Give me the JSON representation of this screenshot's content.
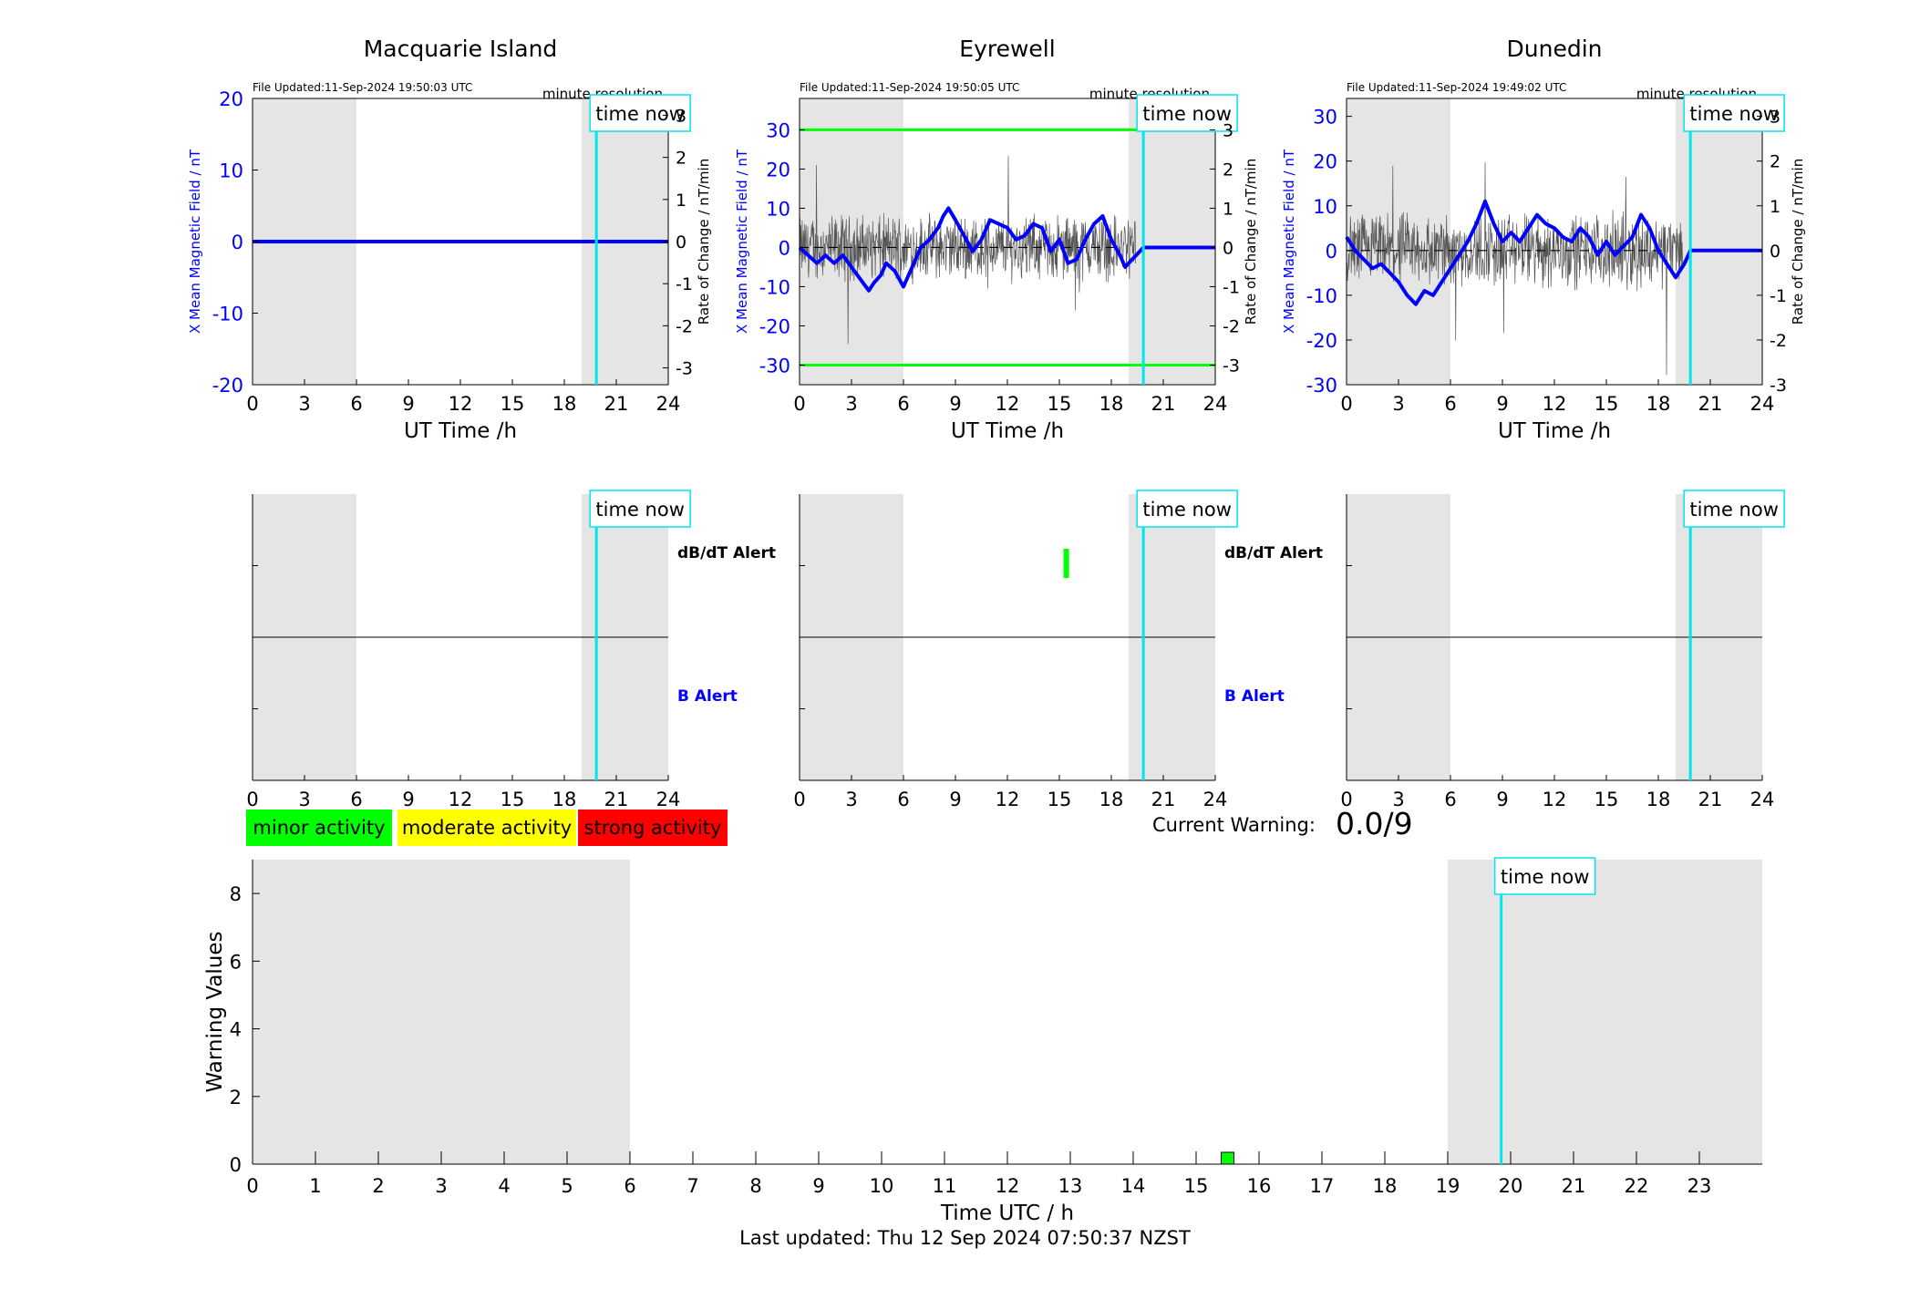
{
  "legend": {
    "minor": {
      "label": "minor activity",
      "color": "#00ff00"
    },
    "moderate": {
      "label": "moderate activity",
      "color": "#ffff00"
    },
    "strong": {
      "label": "strong activity",
      "color": "#ff0000"
    }
  },
  "current_warning": {
    "label": "Current Warning:",
    "value": "0.0/9"
  },
  "footer": {
    "last_updated": "Last updated: Thu 12 Sep 2024 07:50:37 NZST"
  },
  "colors": {
    "field": "#0000ff",
    "rate": "#555555",
    "shade": "#e5e5e5",
    "time_now": "#00e5ee",
    "threshold": "#00ff00"
  },
  "common": {
    "time_now_label": "time now",
    "minute_resolution": "minute resolution",
    "x_label": "UT Time /h",
    "y_label_field": "X Mean Magnetic Field / nT",
    "y_label_rate": "Rate of Change / nT/min",
    "dbdt_alert": "dB/dT Alert",
    "b_alert": "B Alert",
    "x_ticks": [
      0,
      3,
      6,
      9,
      12,
      15,
      18,
      21,
      24
    ]
  },
  "chart_data": [
    {
      "type": "line",
      "station": "Macquarie Island",
      "file_updated": "File Updated:11-Sep-2024 19:50:03 UTC",
      "xlim": [
        0,
        24
      ],
      "ylim": [
        -20,
        20
      ],
      "y_ticks": [
        "20",
        "10",
        "0",
        "-10",
        "-20"
      ],
      "y2lim": [
        -3.4,
        3.4
      ],
      "y2_ticks": [
        "3",
        "2",
        "1",
        "0",
        "-1",
        "-2",
        "-3"
      ],
      "shaded_x": [
        [
          0,
          6
        ],
        [
          19,
          24
        ]
      ],
      "time_now": 19.85,
      "series": [
        {
          "name": "X Mean Magnetic Field / nT",
          "x": [
            0,
            24
          ],
          "y": [
            0,
            0
          ]
        }
      ],
      "alerts": {
        "dbdt": [],
        "b": []
      }
    },
    {
      "type": "line",
      "station": "Eyrewell",
      "file_updated": "File Updated:11-Sep-2024 19:50:05 UTC",
      "xlim": [
        0,
        24
      ],
      "ylim": [
        -35,
        38
      ],
      "y_ticks": [
        "30",
        "20",
        "10",
        "0",
        "-10",
        "-20",
        "-30"
      ],
      "y2lim": [
        -3.5,
        3.8
      ],
      "y2_ticks": [
        "3",
        "2",
        "1",
        "0",
        "-1",
        "-2",
        "-3"
      ],
      "shaded_x": [
        [
          0,
          6
        ],
        [
          19,
          24
        ]
      ],
      "time_now": 19.85,
      "thresholds": [
        30,
        -30
      ],
      "series": [
        {
          "name": "X Mean Magnetic Field / nT",
          "x": [
            0,
            0.5,
            1,
            1.5,
            2,
            2.5,
            3,
            3.5,
            4,
            4.3,
            4.7,
            5,
            5.5,
            6,
            6.5,
            7,
            7.5,
            8,
            8.3,
            8.6,
            9,
            9.5,
            10,
            10.5,
            11,
            11.5,
            12,
            12.5,
            13,
            13.5,
            14,
            14.5,
            15,
            15.5,
            16,
            16.5,
            17,
            17.5,
            18,
            18.5,
            18.8,
            19,
            19.85,
            24
          ],
          "y": [
            0,
            -2,
            -4,
            -2,
            -4,
            -2,
            -5,
            -8,
            -11,
            -9,
            -7,
            -4,
            -6,
            -10,
            -5,
            0,
            2,
            5,
            8,
            10,
            7,
            3,
            -1,
            2,
            7,
            6,
            5,
            2,
            3,
            6,
            5,
            -1,
            2,
            -4,
            -3,
            2,
            6,
            8,
            2,
            -2,
            -5,
            -4,
            0,
            0
          ]
        }
      ],
      "alerts": {
        "dbdt": [
          15.4
        ],
        "b": []
      }
    },
    {
      "type": "line",
      "station": "Dunedin",
      "file_updated": "File Updated:11-Sep-2024 19:49:02 UTC",
      "xlim": [
        0,
        24
      ],
      "ylim": [
        -30,
        34
      ],
      "y_ticks": [
        "30",
        "20",
        "10",
        "0",
        "-10",
        "-20",
        "-30"
      ],
      "y2lim": [
        -3,
        3.4
      ],
      "y2_ticks": [
        "3",
        "2",
        "1",
        "0",
        "-1",
        "-2",
        "-3"
      ],
      "shaded_x": [
        [
          0,
          6
        ],
        [
          19,
          24
        ]
      ],
      "time_now": 19.85,
      "series": [
        {
          "name": "X Mean Magnetic Field / nT",
          "x": [
            0,
            0.5,
            1,
            1.5,
            2,
            2.5,
            3,
            3.5,
            4,
            4.5,
            5,
            5.5,
            6,
            6.5,
            7,
            7.5,
            8,
            8.5,
            9,
            9.5,
            10,
            10.5,
            11,
            11.5,
            12,
            12.5,
            13,
            13.5,
            14,
            14.5,
            15,
            15.5,
            16,
            16.5,
            17,
            17.5,
            18,
            18.5,
            19,
            19.5,
            19.85,
            24
          ],
          "y": [
            3,
            0,
            -2,
            -4,
            -3,
            -5,
            -7,
            -10,
            -12,
            -9,
            -10,
            -7,
            -4,
            -1,
            2,
            6,
            11,
            6,
            2,
            4,
            2,
            5,
            8,
            6,
            5,
            3,
            2,
            5,
            3,
            -1,
            2,
            -1,
            1,
            3,
            8,
            5,
            0,
            -3,
            -6,
            -3,
            0,
            0
          ]
        }
      ],
      "alerts": {
        "dbdt": [],
        "b": []
      }
    },
    {
      "type": "bar",
      "xlabel": "Time UTC / h",
      "ylabel": "Warning Values",
      "xlim": [
        0,
        24
      ],
      "ylim": [
        0,
        9
      ],
      "x_ticks": [
        0,
        1,
        2,
        3,
        4,
        5,
        6,
        7,
        8,
        9,
        10,
        11,
        12,
        13,
        14,
        15,
        16,
        17,
        18,
        19,
        20,
        21,
        22,
        23
      ],
      "y_ticks": [
        0,
        2,
        4,
        6,
        8
      ],
      "shaded_x": [
        [
          0,
          6
        ],
        [
          19,
          24
        ]
      ],
      "time_now": 19.85,
      "bars": [
        {
          "x": 15.5,
          "value": 0.35,
          "level": "minor"
        }
      ]
    }
  ]
}
